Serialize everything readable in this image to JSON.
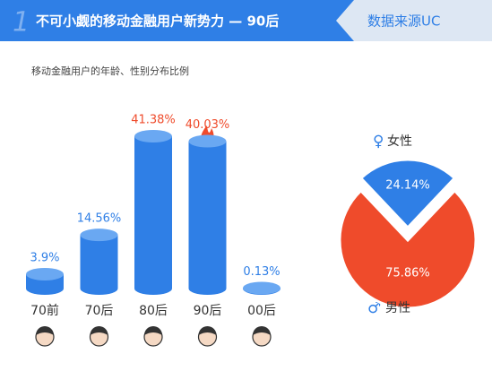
{
  "header": {
    "number": "1",
    "title": "不可小觑的移动金融用户新势力 — 90后",
    "source": "数据来源UC"
  },
  "chart_data": [
    {
      "type": "bar",
      "title": "移动金融用户的年龄、性别分布比例",
      "categories": [
        "70前",
        "70后",
        "80后",
        "90后",
        "00后"
      ],
      "values": [
        3.9,
        14.56,
        41.38,
        40.03,
        0.13
      ],
      "value_labels": [
        "3.9%",
        "14.56%",
        "41.38%",
        "40.03%",
        "0.13%"
      ],
      "color": "#2f7fe6",
      "label_colors": [
        "#2f7fe6",
        "#2f7fe6",
        "#ef4b2b",
        "#ef4b2b",
        "#2f7fe6"
      ]
    },
    {
      "type": "pie",
      "categories": [
        "女性",
        "男性"
      ],
      "values": [
        24.14,
        75.86
      ],
      "value_labels": [
        "24.14%",
        "75.86%"
      ],
      "colors": [
        "#2f7fe6",
        "#ef4b2b"
      ]
    }
  ]
}
